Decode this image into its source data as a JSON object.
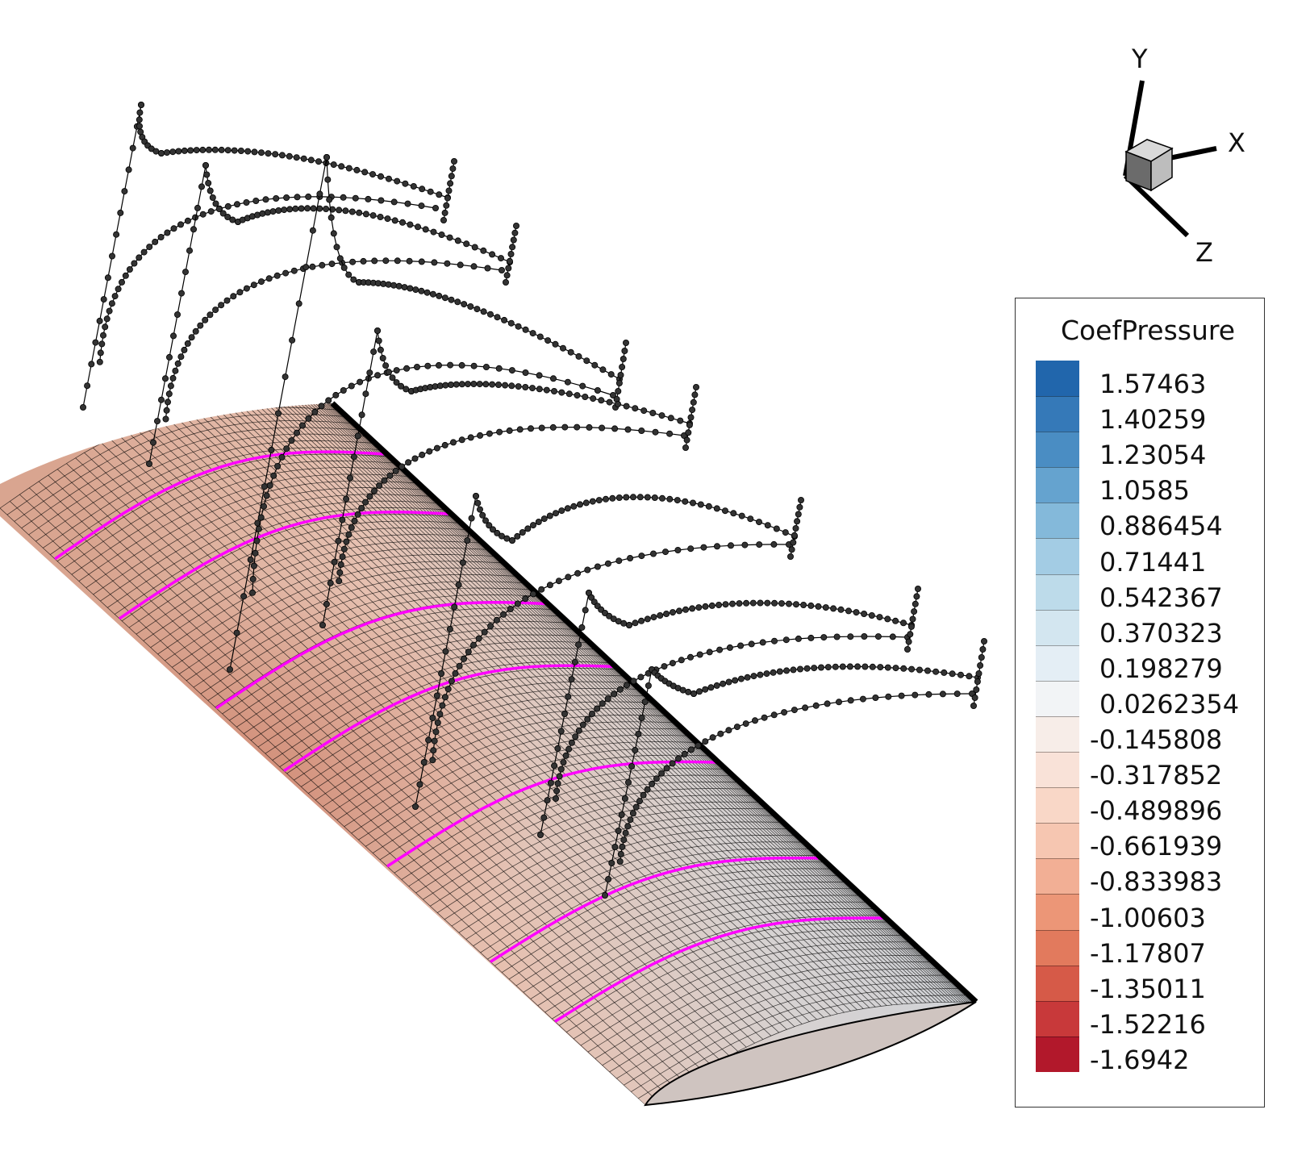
{
  "legend": {
    "title": "CoefPressure",
    "levels": [
      "1.57463",
      "1.40259",
      "1.23054",
      "1.0585",
      "0.886454",
      "0.71441",
      "0.542367",
      "0.370323",
      "0.198279",
      "0.0262354",
      "-0.145808",
      "-0.317852",
      "-0.489896",
      "-0.661939",
      "-0.833983",
      "-1.00603",
      "-1.17807",
      "-1.35011",
      "-1.52216",
      "-1.6942"
    ],
    "colors": [
      "#2166ac",
      "#3579b8",
      "#4a8dc3",
      "#65a3cf",
      "#84b9da",
      "#a3cce4",
      "#bddbea",
      "#d3e6f0",
      "#e4eef5",
      "#f2f4f6",
      "#f7ede8",
      "#f9e2d8",
      "#f9d7c7",
      "#f6c6b1",
      "#f2af95",
      "#ec9677",
      "#e27a5d",
      "#d65a48",
      "#c8393a",
      "#b2182b"
    ]
  },
  "axes": {
    "x_label": "X",
    "y_label": "Y",
    "z_label": "Z"
  },
  "wing": {
    "mesh_color": "#000000",
    "section_cut_color": "#ff00ff",
    "profile_marker_color": "#333333"
  }
}
